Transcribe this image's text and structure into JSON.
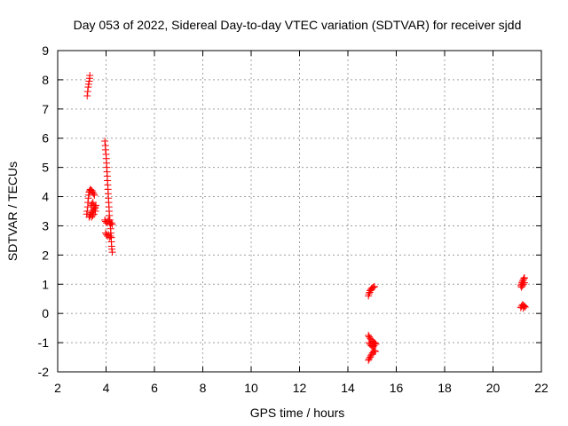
{
  "chart_data": {
    "type": "scatter",
    "title": "Day 053 of 2022, Sidereal Day-to-day VTEC variation (SDTVAR) for receiver sjdd",
    "xlabel": "GPS time / hours",
    "ylabel": "SDTVAR / TECUs",
    "xlim": [
      2,
      22
    ],
    "ylim": [
      -2,
      9
    ],
    "xticks": [
      "2",
      "4",
      "6",
      "8",
      "10",
      "12",
      "14",
      "16",
      "18",
      "20",
      "22"
    ],
    "yticks": [
      "-2",
      "-1",
      "0",
      "1",
      "2",
      "3",
      "4",
      "5",
      "6",
      "7",
      "8",
      "9"
    ],
    "grid": true,
    "marker": "plus",
    "series": [
      {
        "name": "SDTVAR",
        "color": "#ff0000",
        "points": [
          [
            3.22,
            7.45
          ],
          [
            3.24,
            7.6
          ],
          [
            3.26,
            7.75
          ],
          [
            3.28,
            7.85
          ],
          [
            3.3,
            7.95
          ],
          [
            3.32,
            8.05
          ],
          [
            3.33,
            8.15
          ],
          [
            3.2,
            3.4
          ],
          [
            3.22,
            3.5
          ],
          [
            3.24,
            3.65
          ],
          [
            3.25,
            3.8
          ],
          [
            3.27,
            3.95
          ],
          [
            3.28,
            4.05
          ],
          [
            3.3,
            4.15
          ],
          [
            3.32,
            4.2
          ],
          [
            3.35,
            4.25
          ],
          [
            3.38,
            4.22
          ],
          [
            3.42,
            4.2
          ],
          [
            3.45,
            4.15
          ],
          [
            3.48,
            4.1
          ],
          [
            3.52,
            4.05
          ],
          [
            3.3,
            3.3
          ],
          [
            3.33,
            3.35
          ],
          [
            3.36,
            3.4
          ],
          [
            3.4,
            3.45
          ],
          [
            3.44,
            3.5
          ],
          [
            3.48,
            3.55
          ],
          [
            3.52,
            3.6
          ],
          [
            3.55,
            3.65
          ],
          [
            3.58,
            3.7
          ],
          [
            3.38,
            3.7
          ],
          [
            3.42,
            3.75
          ],
          [
            3.46,
            3.8
          ],
          [
            3.5,
            3.7
          ],
          [
            3.54,
            3.6
          ],
          [
            3.56,
            3.5
          ],
          [
            3.5,
            3.4
          ],
          [
            3.45,
            3.35
          ],
          [
            3.4,
            3.3
          ],
          [
            3.95,
            5.9
          ],
          [
            3.97,
            5.75
          ],
          [
            3.98,
            5.6
          ],
          [
            4.0,
            5.45
          ],
          [
            4.01,
            5.3
          ],
          [
            4.02,
            5.15
          ],
          [
            4.03,
            5.0
          ],
          [
            4.04,
            4.85
          ],
          [
            4.05,
            4.7
          ],
          [
            4.06,
            4.55
          ],
          [
            4.07,
            4.4
          ],
          [
            4.08,
            4.25
          ],
          [
            4.09,
            4.1
          ],
          [
            4.1,
            3.95
          ],
          [
            4.11,
            3.8
          ],
          [
            4.12,
            3.65
          ],
          [
            4.13,
            3.5
          ],
          [
            4.14,
            3.35
          ],
          [
            4.16,
            3.2
          ],
          [
            4.18,
            3.05
          ],
          [
            4.19,
            2.9
          ],
          [
            4.2,
            2.75
          ],
          [
            4.21,
            2.6
          ],
          [
            4.22,
            2.45
          ],
          [
            4.23,
            2.3
          ],
          [
            4.24,
            2.2
          ],
          [
            4.26,
            2.1
          ],
          [
            3.95,
            3.2
          ],
          [
            3.98,
            3.15
          ],
          [
            4.02,
            3.1
          ],
          [
            4.06,
            3.15
          ],
          [
            4.1,
            3.2
          ],
          [
            4.14,
            3.1
          ],
          [
            4.18,
            3.05
          ],
          [
            4.22,
            3.1
          ],
          [
            4.26,
            3.05
          ],
          [
            3.98,
            2.75
          ],
          [
            4.02,
            2.7
          ],
          [
            4.06,
            2.65
          ],
          [
            4.1,
            2.7
          ],
          [
            4.14,
            2.6
          ],
          [
            4.18,
            2.65
          ],
          [
            4.22,
            2.6
          ],
          [
            14.85,
            0.6
          ],
          [
            14.87,
            0.67
          ],
          [
            14.9,
            0.72
          ],
          [
            14.92,
            0.78
          ],
          [
            14.95,
            0.82
          ],
          [
            14.98,
            0.86
          ],
          [
            15.02,
            0.88
          ],
          [
            15.06,
            0.9
          ],
          [
            15.1,
            0.92
          ],
          [
            14.85,
            -0.75
          ],
          [
            14.88,
            -0.8
          ],
          [
            14.92,
            -0.85
          ],
          [
            14.96,
            -0.9
          ],
          [
            15.0,
            -0.95
          ],
          [
            15.04,
            -0.98
          ],
          [
            15.08,
            -1.0
          ],
          [
            15.12,
            -1.02
          ],
          [
            15.16,
            -1.05
          ],
          [
            14.88,
            -1.0
          ],
          [
            14.92,
            -1.05
          ],
          [
            14.96,
            -1.1
          ],
          [
            15.0,
            -1.12
          ],
          [
            15.04,
            -1.15
          ],
          [
            15.08,
            -1.1
          ],
          [
            14.85,
            -1.6
          ],
          [
            14.88,
            -1.55
          ],
          [
            14.92,
            -1.5
          ],
          [
            14.95,
            -1.45
          ],
          [
            14.98,
            -1.4
          ],
          [
            15.02,
            -1.35
          ],
          [
            15.06,
            -1.3
          ],
          [
            15.1,
            -1.28
          ],
          [
            15.14,
            -1.3
          ],
          [
            21.15,
            0.95
          ],
          [
            21.18,
            1.0
          ],
          [
            21.2,
            1.05
          ],
          [
            21.22,
            1.1
          ],
          [
            21.25,
            1.15
          ],
          [
            21.28,
            1.2
          ],
          [
            21.3,
            1.22
          ],
          [
            21.18,
            0.9
          ],
          [
            21.22,
            0.95
          ],
          [
            21.26,
            1.0
          ],
          [
            21.3,
            1.05
          ],
          [
            21.15,
            0.2
          ],
          [
            21.18,
            0.25
          ],
          [
            21.22,
            0.3
          ],
          [
            21.26,
            0.28
          ],
          [
            21.3,
            0.25
          ],
          [
            21.33,
            0.22
          ],
          [
            21.25,
            0.18
          ]
        ]
      }
    ]
  }
}
